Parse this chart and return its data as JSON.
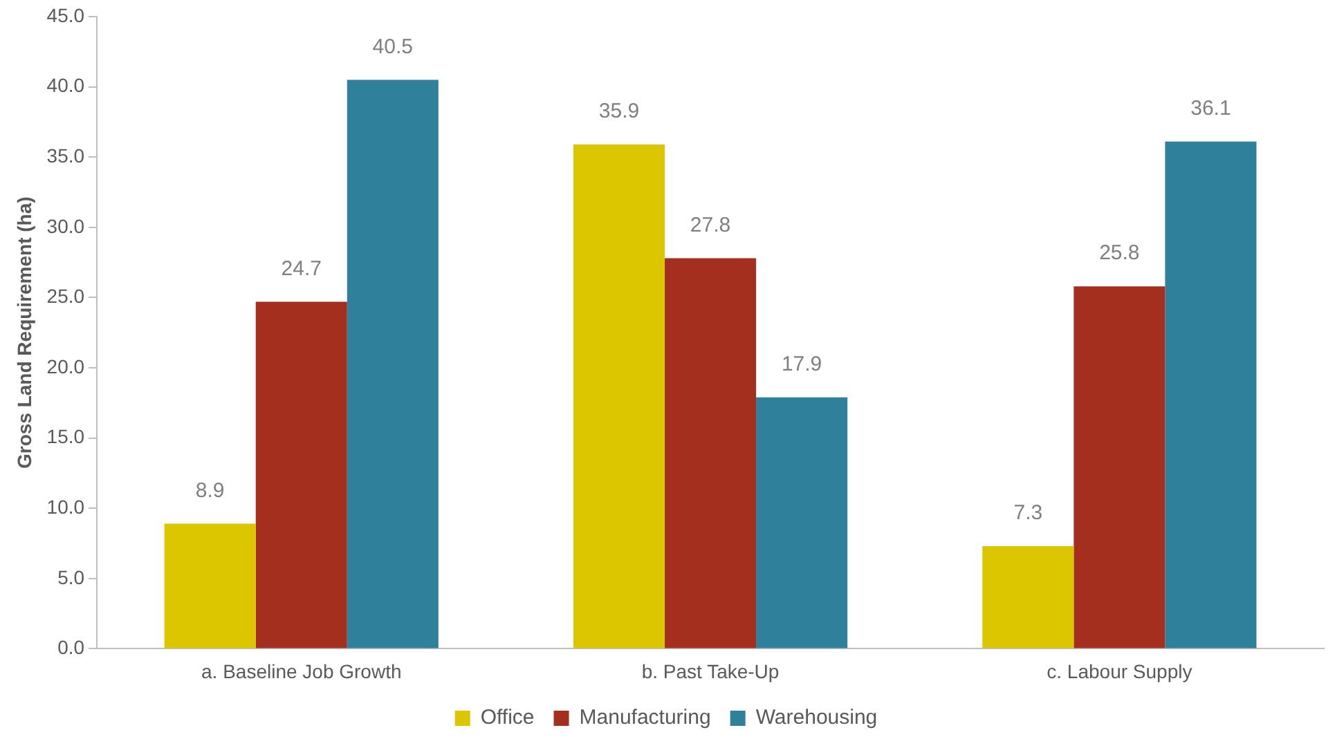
{
  "chart_data": {
    "type": "bar",
    "ylabel": "Gross Land Requirement (ha)",
    "categories": [
      "a. Baseline Job Growth",
      "b. Past Take-Up",
      "c. Labour Supply"
    ],
    "series": [
      {
        "name": "Office",
        "color": "#dcc600",
        "values": [
          8.9,
          35.9,
          7.3
        ]
      },
      {
        "name": "Manufacturing",
        "color": "#a52f1f",
        "values": [
          24.7,
          27.8,
          25.8
        ]
      },
      {
        "name": "Warehousing",
        "color": "#2e809b",
        "values": [
          40.5,
          17.9,
          36.1
        ]
      }
    ],
    "ylim": [
      0,
      45
    ],
    "yticks": [
      {
        "value": 0,
        "label": "0.0"
      },
      {
        "value": 5,
        "label": "5.0"
      },
      {
        "value": 10,
        "label": "10.0"
      },
      {
        "value": 15,
        "label": "15.0"
      },
      {
        "value": 20,
        "label": "20.0"
      },
      {
        "value": 25,
        "label": "25.0"
      },
      {
        "value": 30,
        "label": "30.0"
      },
      {
        "value": 35,
        "label": "35.0"
      },
      {
        "value": 40,
        "label": "40.0"
      },
      {
        "value": 45,
        "label": "45.0"
      }
    ],
    "data_labels": true,
    "legend": "bottom",
    "grid": false
  }
}
